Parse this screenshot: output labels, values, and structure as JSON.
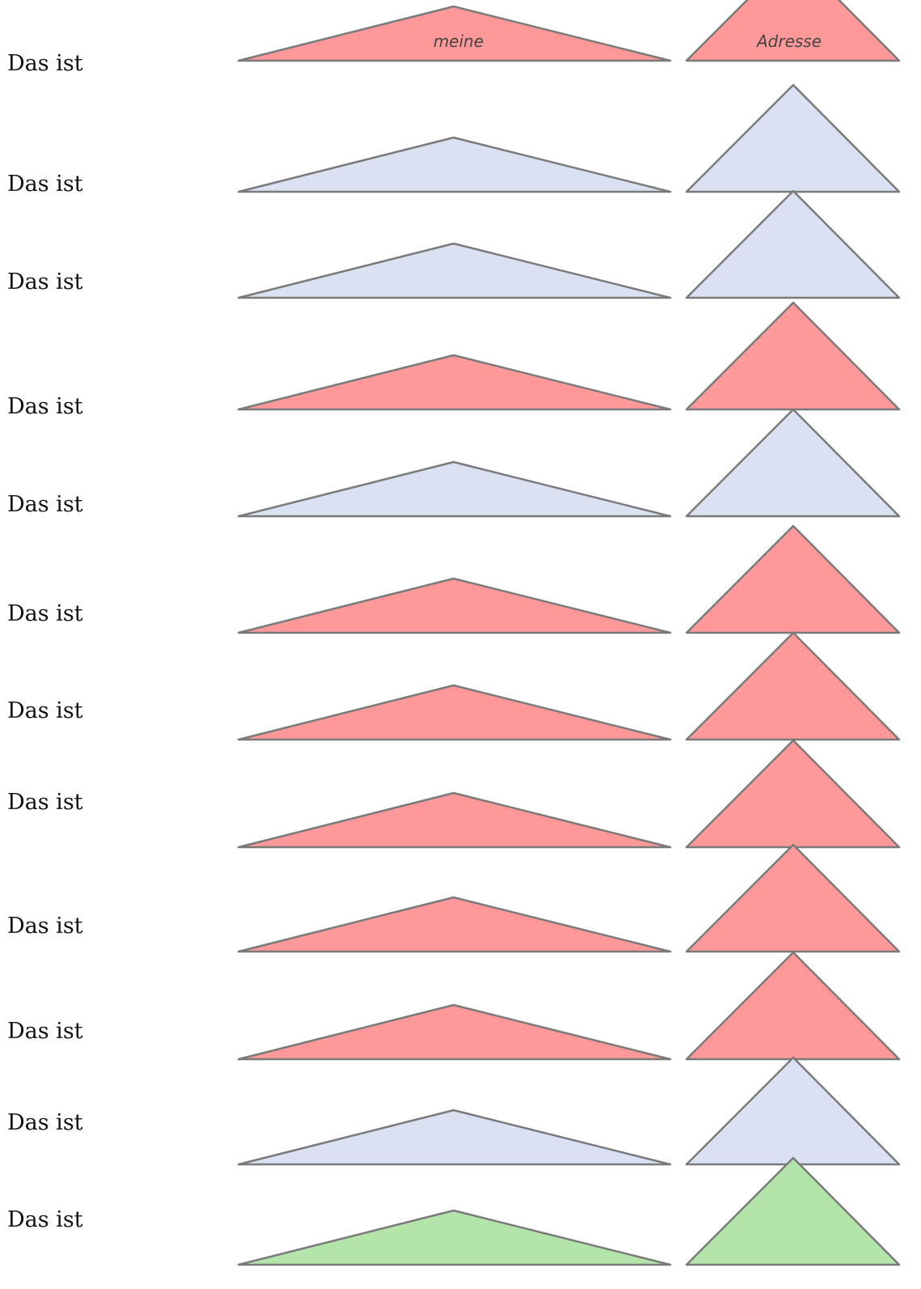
{
  "colors": {
    "red": "#ff9999",
    "blue": "#d9e1f2",
    "green": "#b3e5ab",
    "stroke": "#7a7a7a"
  },
  "rows": [
    {
      "label": "Das ist",
      "color": "red",
      "left_text": "meine",
      "right_text": "Adresse"
    },
    {
      "label": "Das ist",
      "color": "blue",
      "left_text": "",
      "right_text": ""
    },
    {
      "label": "Das ist",
      "color": "blue",
      "left_text": "",
      "right_text": ""
    },
    {
      "label": "Das ist",
      "color": "red",
      "left_text": "",
      "right_text": ""
    },
    {
      "label": "Das ist",
      "color": "blue",
      "left_text": "",
      "right_text": ""
    },
    {
      "label": "Das ist",
      "color": "red",
      "left_text": "",
      "right_text": ""
    },
    {
      "label": "Das ist",
      "color": "red",
      "left_text": "",
      "right_text": ""
    },
    {
      "label": "Das ist",
      "color": "red",
      "left_text": "",
      "right_text": ""
    },
    {
      "label": "Das ist",
      "color": "red",
      "left_text": "",
      "right_text": ""
    },
    {
      "label": "Das ist",
      "color": "red",
      "left_text": "",
      "right_text": ""
    },
    {
      "label": "Das ist",
      "color": "blue",
      "left_text": "",
      "right_text": ""
    },
    {
      "label": "Das ist",
      "color": "green",
      "left_text": "",
      "right_text": ""
    }
  ]
}
